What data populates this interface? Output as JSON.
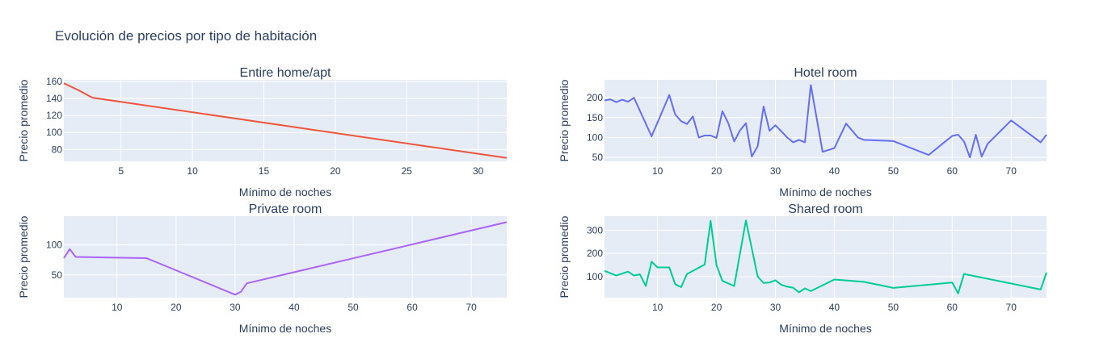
{
  "title": "Evolución de precios por tipo de habitación",
  "chart_data": [
    {
      "type": "line",
      "title": "Entire home/apt",
      "xlabel": "Mínimo de noches",
      "ylabel": "Precio promedio",
      "xlim": [
        1,
        32
      ],
      "ylim": [
        66,
        162
      ],
      "xticks": [
        5,
        10,
        15,
        20,
        25,
        30
      ],
      "yticks": [
        80,
        100,
        120,
        140,
        160
      ],
      "color": "#EF553B",
      "x": [
        1,
        2,
        3,
        32
      ],
      "y": [
        158,
        150,
        141,
        70
      ]
    },
    {
      "type": "line",
      "title": "Hotel room",
      "xlabel": "Mínimo de noches",
      "ylabel": "Precio promedio",
      "xlim": [
        1,
        76
      ],
      "ylim": [
        40,
        245
      ],
      "xticks": [
        10,
        20,
        30,
        40,
        50,
        60,
        70
      ],
      "yticks": [
        50,
        100,
        150,
        200
      ],
      "color": "#636EFA",
      "x": [
        1,
        2,
        3,
        4,
        5,
        6,
        9,
        12,
        13,
        14,
        15,
        16,
        17,
        18,
        19,
        20,
        21,
        22,
        23,
        24,
        25,
        26,
        27,
        28,
        29,
        30,
        32,
        33,
        34,
        35,
        36,
        38,
        40,
        42,
        44,
        45,
        50,
        56,
        58,
        60,
        61,
        62,
        63,
        64,
        65,
        66,
        70,
        75,
        76
      ],
      "y": [
        193,
        196,
        189,
        195,
        190,
        200,
        103,
        207,
        158,
        141,
        134,
        153,
        100,
        105,
        105,
        99,
        166,
        136,
        90,
        118,
        136,
        52,
        78,
        178,
        117,
        131,
        100,
        88,
        94,
        88,
        232,
        64,
        73,
        135,
        100,
        94,
        91,
        56,
        80,
        104,
        107,
        90,
        50,
        107,
        52,
        84,
        143,
        88,
        107
      ]
    },
    {
      "type": "line",
      "title": "Private room",
      "xlabel": "Mínimo de noches",
      "ylabel": "Precio promedio",
      "xlim": [
        1,
        76
      ],
      "ylim": [
        12,
        148
      ],
      "xticks": [
        10,
        20,
        30,
        40,
        50,
        60,
        70
      ],
      "yticks": [
        50,
        100
      ],
      "color": "#AB63FA",
      "x": [
        1,
        2,
        3,
        15,
        30,
        31,
        32,
        76
      ],
      "y": [
        78,
        93,
        80,
        78,
        17,
        22,
        36,
        138
      ]
    },
    {
      "type": "line",
      "title": "Shared room",
      "xlabel": "Mínimo de noches",
      "ylabel": "Precio promedio",
      "xlim": [
        1,
        76
      ],
      "ylim": [
        10,
        360
      ],
      "xticks": [
        10,
        20,
        30,
        40,
        50,
        60,
        70
      ],
      "yticks": [
        100,
        200,
        300
      ],
      "color": "#00CC96",
      "x": [
        1,
        3,
        5,
        6,
        7,
        8,
        9,
        10,
        12,
        13,
        14,
        15,
        18,
        19,
        20,
        21,
        23,
        25,
        27,
        28,
        29,
        30,
        31,
        32,
        33,
        34,
        35,
        36,
        40,
        45,
        50,
        60,
        61,
        62,
        75,
        76
      ],
      "y": [
        125,
        105,
        122,
        105,
        110,
        60,
        165,
        140,
        140,
        68,
        55,
        112,
        152,
        340,
        150,
        82,
        60,
        342,
        100,
        73,
        75,
        85,
        65,
        57,
        53,
        33,
        50,
        38,
        88,
        78,
        52,
        75,
        28,
        112,
        45,
        118
      ]
    }
  ]
}
